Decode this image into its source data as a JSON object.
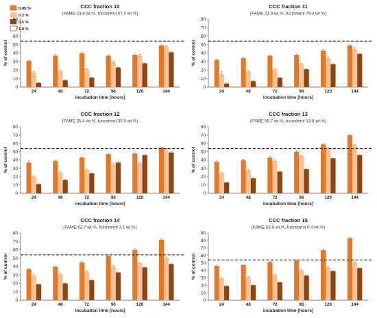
{
  "legend": {
    "items": [
      {
        "label": "0.05 %",
        "color": "#e87722"
      },
      {
        "label": "0.2 %",
        "color": "#f5c29a"
      },
      {
        "label": "0.5 %",
        "color": "#8b4513"
      },
      {
        "label": "1.0 %",
        "color": "#ffffff"
      }
    ]
  },
  "chart_data": [
    {
      "type": "bar",
      "title": "CCC fraction 10",
      "subtitle": "(FAME 23.8 wt.%, fucosterol 67.0 wt.%)",
      "xlabel": "incubation time [hours]",
      "ylabel": "% of control",
      "ylim": [
        0,
        80
      ],
      "yticks": [
        0,
        10,
        20,
        30,
        40,
        50,
        60,
        70,
        80
      ],
      "reference_line": 54,
      "categories": [
        "24",
        "48",
        "72",
        "96",
        "120",
        "144"
      ],
      "series": [
        {
          "name": "0.05 %",
          "values": [
            31,
            37,
            40,
            37,
            38,
            49
          ],
          "errors": [
            1,
            1.5,
            1.5,
            1,
            1.5,
            1
          ]
        },
        {
          "name": "0.2 %",
          "values": [
            17,
            19,
            21,
            29,
            37,
            48
          ],
          "errors": [
            1,
            1,
            1,
            1.5,
            1.5,
            1
          ]
        },
        {
          "name": "0.5 %",
          "values": [
            5,
            8,
            11,
            23,
            28,
            41
          ],
          "errors": [
            0.5,
            0.5,
            0.5,
            0.5,
            0.5,
            0.5
          ]
        }
      ]
    },
    {
      "type": "bar",
      "title": "CCC fraction 11",
      "subtitle": "(FAME 21.9 wt.%, fucosterol 79.4 wt.%)",
      "xlabel": "incubation time [hours]",
      "ylabel": "% of control",
      "ylim": [
        0,
        80
      ],
      "yticks": [
        0,
        10,
        20,
        30,
        40,
        50,
        60,
        70,
        80
      ],
      "reference_line": 54,
      "categories": [
        "24",
        "48",
        "72",
        "96",
        "120",
        "144"
      ],
      "series": [
        {
          "name": "0.05 %",
          "values": [
            32,
            34,
            37,
            38,
            43,
            49
          ],
          "errors": [
            1,
            1,
            1,
            1,
            1,
            1.5
          ]
        },
        {
          "name": "0.2 %",
          "values": [
            15,
            18,
            21,
            27,
            34,
            45
          ],
          "errors": [
            3,
            1,
            1,
            1,
            1.5,
            1.5
          ]
        },
        {
          "name": "0.5 %",
          "values": [
            4,
            7,
            11,
            21,
            27,
            39
          ],
          "errors": [
            0.5,
            0.5,
            0.5,
            0.5,
            0.5,
            0.5
          ]
        }
      ]
    },
    {
      "type": "bar",
      "title": "CCC fraction 12",
      "subtitle": "(FAME 35.4 wt.%, fucosterol 39.9 wt.%)",
      "xlabel": "incubation time [hours]",
      "ylabel": "% of control",
      "ylim": [
        0,
        80
      ],
      "yticks": [
        0,
        10,
        20,
        30,
        40,
        50,
        60,
        70,
        80
      ],
      "reference_line": 54,
      "categories": [
        "24",
        "48",
        "72",
        "96",
        "120",
        "144"
      ],
      "series": [
        {
          "name": "0.05 %",
          "values": [
            37,
            39,
            43,
            47,
            48,
            55
          ],
          "errors": [
            2,
            1,
            1,
            1.5,
            1.5,
            1
          ]
        },
        {
          "name": "0.2 %",
          "values": [
            20,
            25,
            28,
            35,
            36,
            53
          ],
          "errors": [
            1,
            1,
            1,
            1.5,
            1,
            1
          ]
        },
        {
          "name": "0.5 %",
          "values": [
            11,
            16,
            24,
            37,
            46,
            49
          ],
          "errors": [
            0.5,
            0.5,
            0.5,
            1,
            1,
            1
          ]
        }
      ]
    },
    {
      "type": "bar",
      "title": "CCC fraction 13",
      "subtitle": "(FAME 55.7 wt.%, fucosterol 13.8 wt.%)",
      "xlabel": "incubation time [hours]",
      "ylabel": "% of control",
      "ylim": [
        0,
        80
      ],
      "yticks": [
        0,
        10,
        20,
        30,
        40,
        50,
        60,
        70,
        80
      ],
      "reference_line": 54,
      "categories": [
        "24",
        "48",
        "72",
        "96",
        "120",
        "144"
      ],
      "series": [
        {
          "name": "0.05 %",
          "values": [
            38,
            40,
            43,
            50,
            59,
            70
          ],
          "errors": [
            1,
            1,
            1.5,
            1.5,
            1,
            1
          ]
        },
        {
          "name": "0.2 %",
          "values": [
            24,
            28,
            39,
            45,
            54,
            58
          ],
          "errors": [
            1,
            1,
            1.5,
            1,
            1,
            1
          ]
        },
        {
          "name": "0.5 %",
          "values": [
            13,
            18,
            26,
            29,
            42,
            46
          ],
          "errors": [
            0.5,
            0.5,
            0.5,
            0.5,
            0.5,
            0.5
          ]
        }
      ]
    },
    {
      "type": "bar",
      "title": "CCC fraction 14",
      "subtitle": "(FAME 62.7 wt.%, fucosterol 3.1 wt.%)",
      "xlabel": "incubation time [hours]",
      "ylabel": "% of control",
      "ylim": [
        0,
        80
      ],
      "yticks": [
        0,
        10,
        20,
        30,
        40,
        50,
        60,
        70,
        80
      ],
      "reference_line": 54,
      "categories": [
        "24",
        "48",
        "72",
        "96",
        "120",
        "144"
      ],
      "series": [
        {
          "name": "0.05 %",
          "values": [
            37,
            40,
            45,
            53,
            60,
            72
          ],
          "errors": [
            1,
            1,
            1,
            1,
            1.5,
            1
          ]
        },
        {
          "name": "0.2 %",
          "values": [
            29,
            31,
            34,
            40,
            44,
            50
          ],
          "errors": [
            2,
            1,
            1,
            1,
            1,
            1.5
          ]
        },
        {
          "name": "0.5 %",
          "values": [
            19,
            20,
            24,
            33,
            39,
            43
          ],
          "errors": [
            0.5,
            0.5,
            0.5,
            0.5,
            0.5,
            0.5
          ]
        }
      ]
    },
    {
      "type": "bar",
      "title": "CCC fraction 15",
      "subtitle": "(FAME 53.9 wt.%, fucosterol 0.0 wt.%)",
      "xlabel": "incubation time [hours]",
      "ylabel": "% of control",
      "ylim": [
        0,
        90
      ],
      "yticks": [
        0,
        10,
        20,
        30,
        40,
        50,
        60,
        70,
        80,
        90
      ],
      "reference_line": 54,
      "categories": [
        "24",
        "48",
        "72",
        "96",
        "120",
        "144"
      ],
      "series": [
        {
          "name": "0.05 %",
          "values": [
            46,
            47,
            51,
            53,
            67,
            83
          ],
          "errors": [
            1,
            1,
            1,
            1,
            1.5,
            1
          ]
        },
        {
          "name": "0.2 %",
          "values": [
            29,
            31,
            34,
            40,
            44,
            50
          ],
          "errors": [
            2,
            1,
            1,
            1,
            1,
            1.5
          ]
        },
        {
          "name": "0.5 %",
          "values": [
            19,
            20,
            24,
            33,
            39,
            43
          ],
          "errors": [
            0.5,
            0.5,
            0.5,
            0.5,
            0.5,
            0.5
          ]
        }
      ]
    }
  ]
}
